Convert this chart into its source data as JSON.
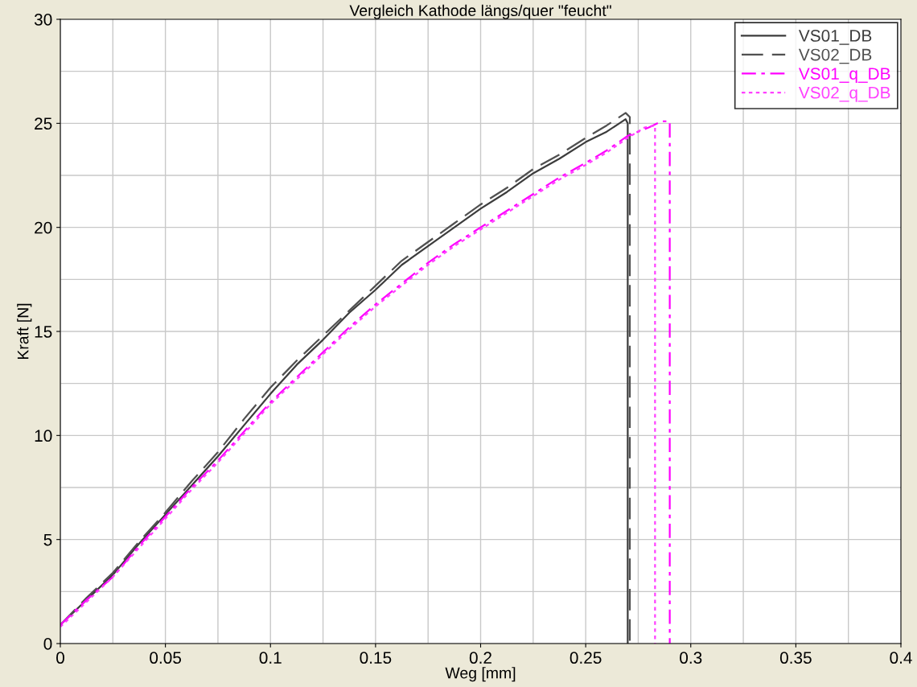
{
  "chart_data": {
    "type": "line",
    "title": "Vergleich Kathode längs/quer \"feucht\"",
    "xlabel": "Weg [mm]",
    "ylabel": "Kraft [N]",
    "xlim": [
      0,
      0.4
    ],
    "ylim": [
      0,
      30
    ],
    "xticks": [
      0,
      0.05,
      0.1,
      0.15,
      0.2,
      0.25,
      0.3,
      0.35,
      0.4
    ],
    "yticks": [
      0,
      5,
      10,
      15,
      20,
      25,
      30
    ],
    "grid": true,
    "legend": "top right",
    "series": [
      {
        "name": "VS01_DB",
        "color": "#3c3c3c",
        "line_style": "solid",
        "x": [
          0,
          0.0125,
          0.025,
          0.0375,
          0.05,
          0.0625,
          0.075,
          0.0875,
          0.1,
          0.1125,
          0.125,
          0.1375,
          0.15,
          0.1625,
          0.175,
          0.1875,
          0.2,
          0.2125,
          0.225,
          0.2375,
          0.25,
          0.26,
          0.266,
          0.269,
          0.27,
          0.27
        ],
        "values": [
          0.9,
          2.1,
          3.3,
          4.8,
          6.2,
          7.6,
          9.0,
          10.5,
          12.0,
          13.4,
          14.6,
          15.9,
          17.0,
          18.2,
          19.1,
          20.0,
          20.9,
          21.7,
          22.6,
          23.3,
          24.1,
          24.6,
          25.0,
          25.2,
          25.0,
          0
        ]
      },
      {
        "name": "VS02_DB",
        "color": "#505050",
        "line_style": "dashed",
        "x": [
          0,
          0.0125,
          0.025,
          0.0375,
          0.05,
          0.0625,
          0.075,
          0.0875,
          0.1,
          0.1125,
          0.125,
          0.1375,
          0.15,
          0.1625,
          0.175,
          0.1875,
          0.2,
          0.2125,
          0.225,
          0.2375,
          0.25,
          0.26,
          0.266,
          0.269,
          0.271,
          0.271
        ],
        "values": [
          0.9,
          2.2,
          3.4,
          4.9,
          6.3,
          7.8,
          9.2,
          10.8,
          12.3,
          13.6,
          14.8,
          16.0,
          17.2,
          18.4,
          19.3,
          20.2,
          21.1,
          21.9,
          22.8,
          23.5,
          24.3,
          24.9,
          25.3,
          25.5,
          25.3,
          0
        ]
      },
      {
        "name": "VS01_q_DB",
        "color": "#ff00ff",
        "line_style": "dashdot",
        "x": [
          0,
          0.0125,
          0.025,
          0.0375,
          0.05,
          0.0625,
          0.075,
          0.0875,
          0.1,
          0.1125,
          0.125,
          0.1375,
          0.15,
          0.1625,
          0.175,
          0.1875,
          0.2,
          0.2125,
          0.225,
          0.2375,
          0.25,
          0.26,
          0.27,
          0.28,
          0.286,
          0.29,
          0.29
        ],
        "values": [
          0.9,
          2.1,
          3.2,
          4.7,
          6.1,
          7.5,
          8.8,
          10.2,
          11.6,
          12.8,
          14.0,
          15.2,
          16.3,
          17.3,
          18.3,
          19.2,
          20.0,
          20.8,
          21.6,
          22.4,
          23.1,
          23.7,
          24.4,
          24.8,
          25.1,
          25.1,
          0
        ]
      },
      {
        "name": "VS02_q_DB",
        "color": "#ff40ff",
        "line_style": "dotted",
        "x": [
          0,
          0.0125,
          0.025,
          0.0375,
          0.05,
          0.0625,
          0.075,
          0.0875,
          0.1,
          0.1125,
          0.125,
          0.1375,
          0.15,
          0.1625,
          0.175,
          0.1875,
          0.2,
          0.2125,
          0.225,
          0.2375,
          0.25,
          0.26,
          0.27,
          0.278,
          0.283,
          0.283
        ],
        "values": [
          0.8,
          2.0,
          3.2,
          4.6,
          6.0,
          7.4,
          8.7,
          10.1,
          11.5,
          12.7,
          13.9,
          15.1,
          16.2,
          17.2,
          18.2,
          19.1,
          19.9,
          20.7,
          21.5,
          22.3,
          23.0,
          23.6,
          24.3,
          24.8,
          24.9,
          0
        ]
      }
    ]
  }
}
